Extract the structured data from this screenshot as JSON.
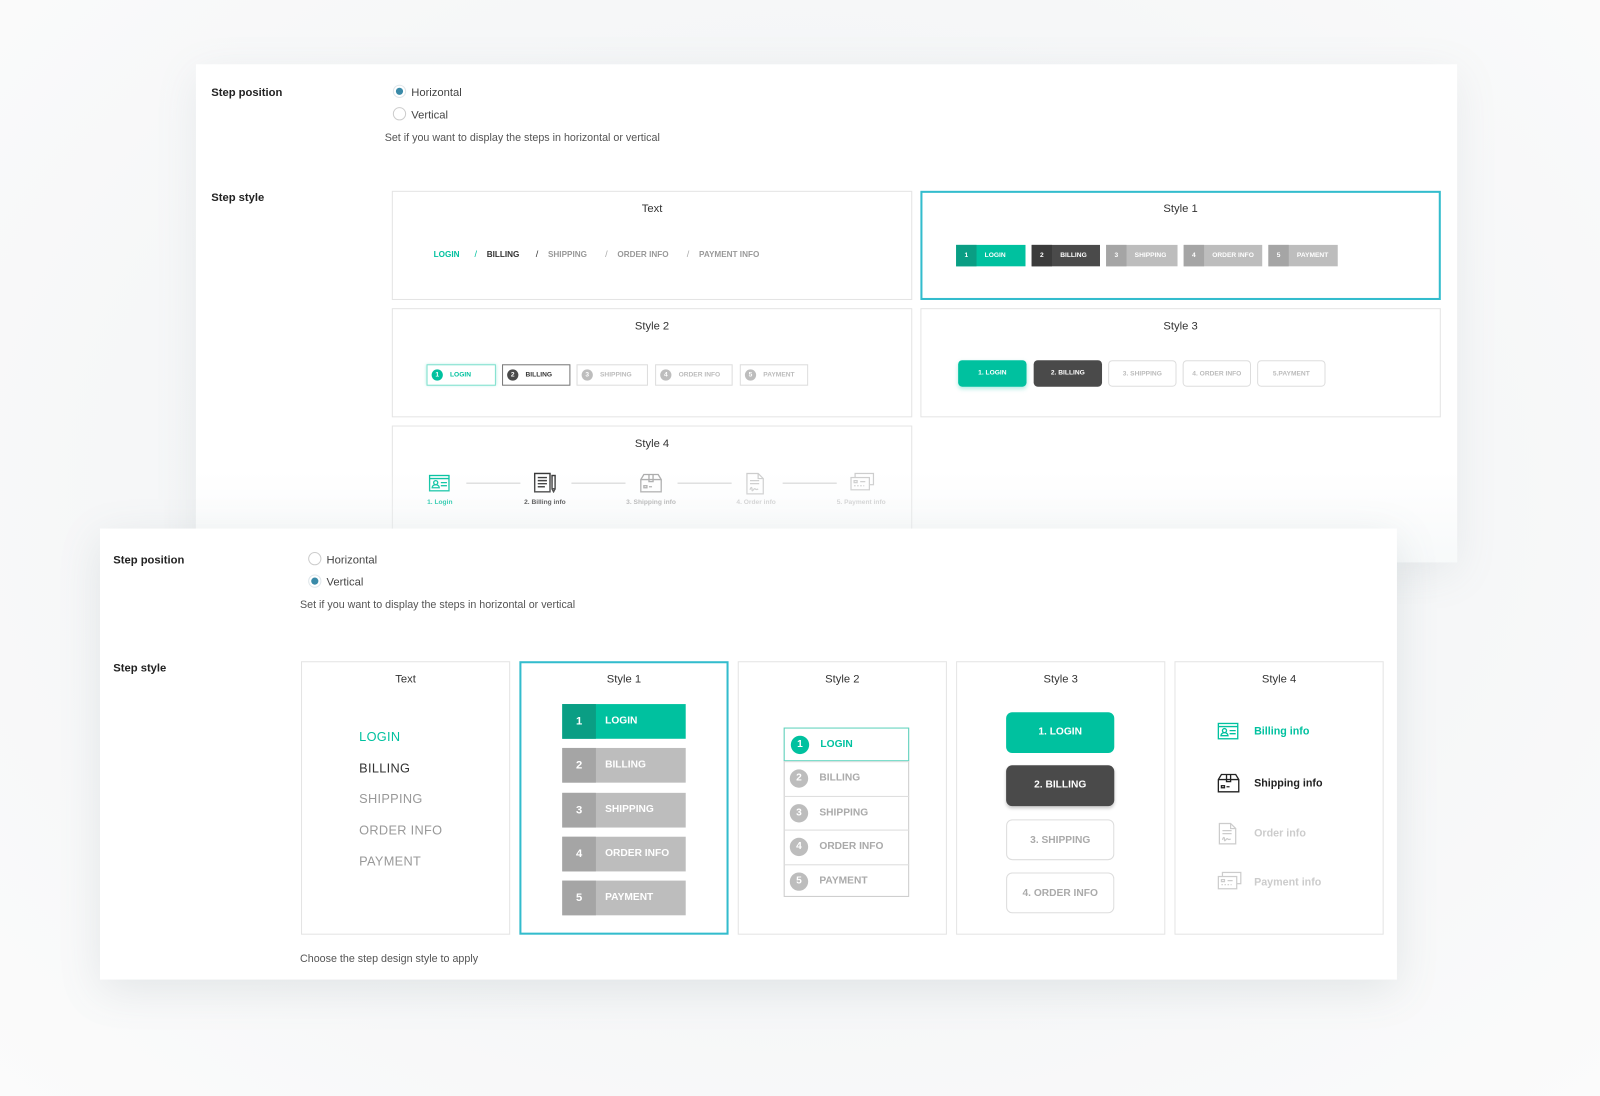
{
  "colors": {
    "accent": "#00c19f",
    "accent_dark": "#0a9e84",
    "active_dark": "#4a4a4a",
    "inactive": "#bdbdbd",
    "selected_border": "#33bccd"
  },
  "horizontal_panel": {
    "step_position": {
      "label": "Step position",
      "options": [
        {
          "label": "Horizontal",
          "checked": true
        },
        {
          "label": "Vertical",
          "checked": false
        }
      ],
      "help": "Set if you want to display the steps in horizontal or vertical"
    },
    "step_style": {
      "label": "Step style",
      "selected": "Style 1",
      "text_card": {
        "title": "Text",
        "steps": [
          "LOGIN",
          "BILLING",
          "SHIPPING",
          "ORDER INFO",
          "PAYMENT INFO"
        ],
        "separator": "/"
      },
      "style1": {
        "title": "Style 1",
        "steps": [
          {
            "num": "1",
            "label": "LOGIN"
          },
          {
            "num": "2",
            "label": "BILLING"
          },
          {
            "num": "3",
            "label": "SHIPPING"
          },
          {
            "num": "4",
            "label": "ORDER INFO"
          },
          {
            "num": "5",
            "label": "PAYMENT"
          }
        ]
      },
      "style2": {
        "title": "Style 2",
        "steps": [
          {
            "num": "1",
            "label": "LOGIN"
          },
          {
            "num": "2",
            "label": "BILLING"
          },
          {
            "num": "3",
            "label": "SHIPPING"
          },
          {
            "num": "4",
            "label": "ORDER INFO"
          },
          {
            "num": "5",
            "label": "PAYMENT"
          }
        ]
      },
      "style3": {
        "title": "Style 3",
        "steps": [
          "1. LOGIN",
          "2. BILLING",
          "3. SHIPPING",
          "4. ORDER INFO",
          "5.PAYMENT"
        ]
      },
      "style4": {
        "title": "Style 4",
        "steps": [
          {
            "label": "1. Login",
            "icon": "id-card-icon"
          },
          {
            "label": "2. Billing info",
            "icon": "document-pen-icon"
          },
          {
            "label": "3. Shipping info",
            "icon": "box-icon"
          },
          {
            "label": "4. Order info",
            "icon": "signed-document-icon"
          },
          {
            "label": "5. Payment info",
            "icon": "credit-cards-icon"
          }
        ]
      }
    }
  },
  "vertical_panel": {
    "step_position": {
      "label": "Step position",
      "options": [
        {
          "label": "Horizontal",
          "checked": false
        },
        {
          "label": "Vertical",
          "checked": true
        }
      ],
      "help": "Set if you want to display the steps in horizontal or vertical"
    },
    "step_style": {
      "label": "Step style",
      "selected": "Style 1",
      "help": "Choose the step design style to apply",
      "text_card": {
        "title": "Text",
        "steps": [
          "LOGIN",
          "BILLING",
          "SHIPPING",
          "ORDER INFO",
          "PAYMENT"
        ]
      },
      "style1": {
        "title": "Style 1",
        "steps": [
          {
            "num": "1",
            "label": "LOGIN"
          },
          {
            "num": "2",
            "label": "BILLING"
          },
          {
            "num": "3",
            "label": "SHIPPING"
          },
          {
            "num": "4",
            "label": "ORDER INFO"
          },
          {
            "num": "5",
            "label": "PAYMENT"
          }
        ]
      },
      "style2": {
        "title": "Style 2",
        "steps": [
          {
            "num": "1",
            "label": "LOGIN"
          },
          {
            "num": "2",
            "label": "BILLING"
          },
          {
            "num": "3",
            "label": "SHIPPING"
          },
          {
            "num": "4",
            "label": "ORDER INFO"
          },
          {
            "num": "5",
            "label": "PAYMENT"
          }
        ]
      },
      "style3": {
        "title": "Style 3",
        "steps": [
          "1. LOGIN",
          "2. BILLING",
          "3. SHIPPING",
          "4. ORDER INFO"
        ]
      },
      "style4": {
        "title": "Style 4",
        "steps": [
          {
            "label": "Billing info",
            "icon": "id-card-icon"
          },
          {
            "label": "Shipping info",
            "icon": "box-icon"
          },
          {
            "label": "Order info",
            "icon": "signed-document-icon"
          },
          {
            "label": "Payment info",
            "icon": "credit-cards-icon"
          }
        ]
      }
    }
  }
}
